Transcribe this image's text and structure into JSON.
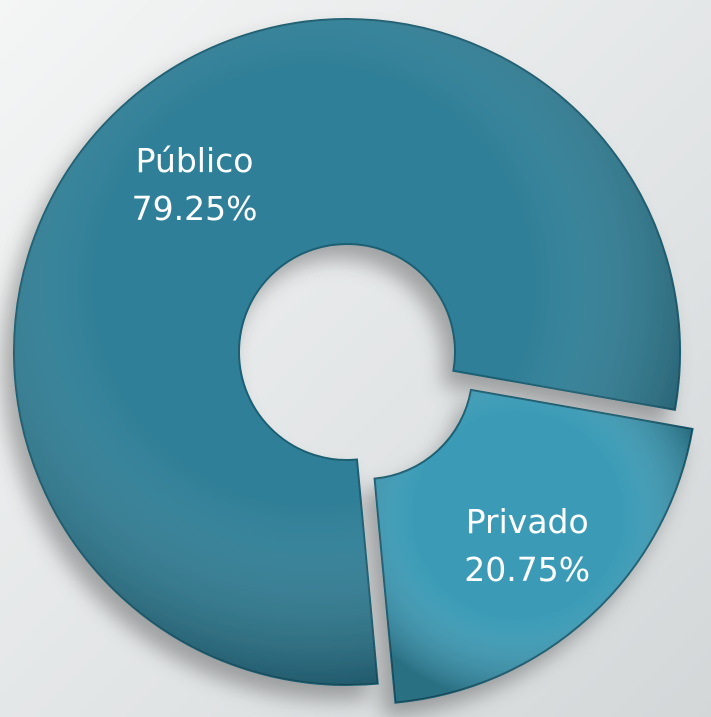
{
  "chart_data": {
    "type": "donut",
    "categories": [
      "Público",
      "Privado"
    ],
    "values": [
      79.25,
      20.75
    ],
    "value_labels": [
      "79.25%",
      "20.75%"
    ],
    "colors": [
      "#2f7f97",
      "#3b9bb6"
    ]
  }
}
